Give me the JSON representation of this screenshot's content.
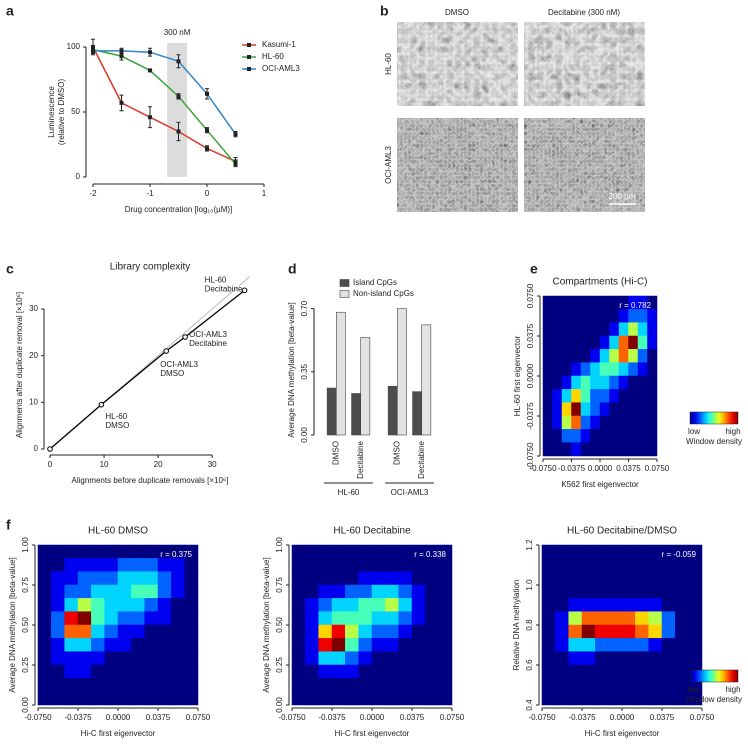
{
  "panel_labels": [
    "a",
    "b",
    "c",
    "d",
    "e",
    "f"
  ],
  "micrographs": {
    "columns": [
      "DMSO",
      "Decitabine (300 nM)"
    ],
    "rows": [
      "HL-60",
      "OCI-AML3"
    ],
    "scale_bar": "200 µm"
  },
  "chart_data": [
    {
      "type": "line",
      "xlabel": "Drug concentration [log₁₀(µM)]",
      "ylabel": [
        "Luminescence",
        "(relative to DMSO)"
      ],
      "x": [
        -2,
        -1.5,
        -1,
        -0.5,
        0,
        0.5
      ],
      "xlim": [
        -2,
        1
      ],
      "xticks": [
        -2,
        -1,
        0,
        1
      ],
      "ylim": [
        0,
        100
      ],
      "yticks": [
        0,
        50,
        100
      ],
      "highlight": {
        "label": "300 nM",
        "xlim": [
          -0.7,
          -0.35
        ]
      },
      "legend": "upper right",
      "series": [
        {
          "name": "Kasumi-1",
          "color": "#d93a2b",
          "values": [
            100,
            57,
            46,
            35,
            22,
            12
          ],
          "errors": [
            6,
            6,
            8,
            7,
            2,
            3
          ]
        },
        {
          "name": "HL-60",
          "color": "#3aa63a",
          "values": [
            98,
            93,
            82,
            62,
            36,
            10
          ],
          "errors": [
            3,
            3,
            1,
            2,
            2,
            2
          ]
        },
        {
          "name": "OCI-AML3",
          "color": "#2f86c8",
          "values": [
            97,
            97,
            96,
            89,
            64,
            33
          ],
          "errors": [
            2,
            2,
            3,
            5,
            4,
            2
          ]
        }
      ]
    },
    {
      "type": "scatter",
      "title": "Library complexity",
      "xlabel": "Alignments before duplicate removals [×10⁶]",
      "ylabel": [
        "Alignments after duplicate removal [×10⁶]"
      ],
      "x": [
        0,
        9.5,
        21.5,
        25,
        36
      ],
      "y": [
        0,
        9.5,
        21,
        24,
        34
      ],
      "color": "#000000",
      "point_labels": [
        null,
        [
          "HL-60",
          "DMSO"
        ],
        [
          "OCI-AML3",
          "DMSO"
        ],
        [
          "OCI-AML3",
          "Decitabine"
        ],
        [
          "HL-60",
          "Decitabine"
        ]
      ],
      "xlim": [
        0,
        37
      ],
      "xticks": [
        0,
        10,
        20,
        30
      ],
      "ylim": [
        0,
        36
      ],
      "yticks": [
        0,
        10,
        20,
        30
      ]
    },
    {
      "type": "grouped_bar",
      "ylabel": [
        "Average DNA methylation [beta-value]"
      ],
      "categories": [
        "DMSO",
        "Decitabine",
        "DMSO",
        "Decitabine"
      ],
      "groups": [
        "HL-60",
        "OCI-AML3"
      ],
      "series": [
        {
          "name": "Island CpGs",
          "color": "#4d4d4d",
          "values": [
            0.26,
            0.23,
            0.27,
            0.24
          ]
        },
        {
          "name": "Non-island CpGs",
          "color": "#e2e2e2",
          "values": [
            0.68,
            0.54,
            0.7,
            0.61
          ]
        }
      ],
      "ylim": [
        0,
        0.72
      ],
      "yticks": [
        {
          "value": 0,
          "label": "0.00"
        },
        0.35,
        {
          "value": 0.7,
          "label": "0.70"
        }
      ],
      "legend": "upper center"
    },
    {
      "type": "heatmap",
      "title": "Compartments (Hi-C)",
      "annotation": "r = 0.782",
      "xlabel": "K562 first eigenvector",
      "ylabel": [
        "HL-60 first eigenvector"
      ],
      "xlim": [
        -0.075,
        0.075
      ],
      "ylim": [
        -0.075,
        0.075
      ],
      "xticks": [
        {
          "value": -0.075,
          "label": "-0.0750"
        },
        {
          "value": -0.0375,
          "label": "-0.0375"
        },
        {
          "value": 0,
          "label": "0.0000"
        },
        {
          "value": 0.0375,
          "label": "0.0375"
        },
        {
          "value": 0.075,
          "label": "0.0750"
        }
      ],
      "yticks": [
        {
          "value": -0.075,
          "label": "-0.0750"
        },
        {
          "value": -0.0375,
          "label": "-0.0375"
        },
        {
          "value": 0,
          "label": "0.0000"
        },
        {
          "value": 0.0375,
          "label": "0.0375"
        },
        {
          "value": 0.075,
          "label": "0.0750"
        }
      ],
      "zlim": [
        0,
        9
      ],
      "colorbar": {
        "low": "low",
        "high": "high",
        "label": "Window density"
      },
      "z": [
        [
          0,
          0,
          0,
          0,
          0,
          0,
          0,
          0,
          0,
          1,
          1,
          0
        ],
        [
          0,
          0,
          0,
          0,
          0,
          0,
          0,
          0,
          1,
          2,
          2,
          1
        ],
        [
          0,
          0,
          0,
          0,
          0,
          0,
          0,
          1,
          3,
          5,
          3,
          1
        ],
        [
          0,
          0,
          0,
          0,
          0,
          0,
          1,
          3,
          7,
          9,
          4,
          1
        ],
        [
          0,
          0,
          0,
          0,
          0,
          1,
          3,
          5,
          7,
          5,
          2,
          0
        ],
        [
          0,
          0,
          0,
          1,
          2,
          3,
          4,
          4,
          3,
          2,
          1,
          0
        ],
        [
          0,
          0,
          1,
          3,
          4,
          3,
          3,
          2,
          1,
          0,
          0,
          0
        ],
        [
          0,
          1,
          3,
          6,
          4,
          2,
          2,
          1,
          0,
          0,
          0,
          0
        ],
        [
          0,
          1,
          6,
          9,
          3,
          2,
          1,
          0,
          0,
          0,
          0,
          0
        ],
        [
          0,
          1,
          5,
          7,
          2,
          1,
          0,
          0,
          0,
          0,
          0,
          0
        ],
        [
          0,
          0,
          2,
          2,
          1,
          0,
          0,
          0,
          0,
          0,
          0,
          0
        ],
        [
          0,
          0,
          0,
          1,
          0,
          0,
          0,
          0,
          0,
          0,
          0,
          0
        ]
      ]
    },
    {
      "type": "heatmap",
      "title": "HL-60 DMSO",
      "annotation": "r = 0.375",
      "xlabel": "Hi-C first eigenvector",
      "ylabel": [
        "Average DNA methylation [beta-value]"
      ],
      "xlim": [
        -0.075,
        0.075
      ],
      "ylim": [
        0,
        1
      ],
      "xticks": [
        {
          "value": -0.075,
          "label": "-0.0750"
        },
        {
          "value": -0.0375,
          "label": "-0.0375"
        },
        {
          "value": 0,
          "label": "0.0000"
        },
        {
          "value": 0.0375,
          "label": "0.0375"
        },
        {
          "value": 0.075,
          "label": "0.0750"
        }
      ],
      "yticks": [
        {
          "value": 0,
          "label": "0.00"
        },
        0.25,
        {
          "value": 0.5,
          "label": "0.50"
        },
        0.75,
        {
          "value": 1,
          "label": "1.00"
        }
      ],
      "zlim": [
        0,
        9
      ],
      "z": [
        [
          0,
          0,
          0,
          0,
          0,
          0,
          0,
          0,
          0,
          0,
          0,
          0
        ],
        [
          0,
          0,
          1,
          1,
          1,
          1,
          2,
          2,
          2,
          1,
          1,
          0
        ],
        [
          0,
          1,
          1,
          2,
          2,
          2,
          3,
          3,
          3,
          2,
          1,
          0
        ],
        [
          0,
          1,
          2,
          2,
          3,
          3,
          3,
          4,
          4,
          2,
          1,
          0
        ],
        [
          0,
          1,
          3,
          5,
          4,
          3,
          3,
          3,
          2,
          1,
          0,
          0
        ],
        [
          0,
          2,
          8,
          9,
          4,
          3,
          2,
          2,
          1,
          1,
          0,
          0
        ],
        [
          0,
          2,
          7,
          7,
          3,
          2,
          1,
          1,
          0,
          0,
          0,
          0
        ],
        [
          0,
          1,
          3,
          3,
          2,
          1,
          1,
          0,
          0,
          0,
          0,
          0
        ],
        [
          0,
          1,
          1,
          1,
          1,
          0,
          0,
          0,
          0,
          0,
          0,
          0
        ],
        [
          0,
          0,
          1,
          1,
          0,
          0,
          0,
          0,
          0,
          0,
          0,
          0
        ],
        [
          0,
          0,
          0,
          0,
          0,
          0,
          0,
          0,
          0,
          0,
          0,
          0
        ],
        [
          0,
          0,
          0,
          0,
          0,
          0,
          0,
          0,
          0,
          0,
          0,
          0
        ]
      ]
    },
    {
      "type": "heatmap",
      "title": "HL-60 Decitabine",
      "annotation": "r = 0.338",
      "xlabel": "Hi-C first eigenvector",
      "ylabel": [
        "Average DNA methylation [beta-value]"
      ],
      "xlim": [
        -0.075,
        0.075
      ],
      "ylim": [
        0,
        1
      ],
      "xticks": [
        {
          "value": -0.075,
          "label": "-0.0750"
        },
        {
          "value": -0.0375,
          "label": "-0.0375"
        },
        {
          "value": 0,
          "label": "0.0000"
        },
        {
          "value": 0.0375,
          "label": "0.0375"
        },
        {
          "value": 0.075,
          "label": "0.0750"
        }
      ],
      "yticks": [
        {
          "value": 0,
          "label": "0.00"
        },
        0.25,
        {
          "value": 0.5,
          "label": "0.50"
        },
        0.75,
        {
          "value": 1,
          "label": "1.00"
        }
      ],
      "zlim": [
        0,
        9
      ],
      "z": [
        [
          0,
          0,
          0,
          0,
          0,
          0,
          0,
          0,
          0,
          0,
          0,
          0
        ],
        [
          0,
          0,
          0,
          0,
          0,
          0,
          0,
          0,
          0,
          0,
          0,
          0
        ],
        [
          0,
          0,
          0,
          0,
          0,
          1,
          1,
          1,
          1,
          0,
          0,
          0
        ],
        [
          0,
          0,
          1,
          1,
          2,
          2,
          3,
          3,
          2,
          1,
          0,
          0
        ],
        [
          0,
          1,
          2,
          3,
          3,
          4,
          4,
          5,
          3,
          1,
          0,
          0
        ],
        [
          0,
          1,
          3,
          4,
          4,
          4,
          3,
          3,
          2,
          1,
          0,
          0
        ],
        [
          0,
          1,
          6,
          8,
          5,
          3,
          2,
          2,
          1,
          0,
          0,
          0
        ],
        [
          0,
          1,
          8,
          9,
          4,
          2,
          1,
          1,
          0,
          0,
          0,
          0
        ],
        [
          0,
          1,
          3,
          3,
          2,
          1,
          0,
          0,
          0,
          0,
          0,
          0
        ],
        [
          0,
          0,
          1,
          1,
          1,
          0,
          0,
          0,
          0,
          0,
          0,
          0
        ],
        [
          0,
          0,
          0,
          0,
          0,
          0,
          0,
          0,
          0,
          0,
          0,
          0
        ],
        [
          0,
          0,
          0,
          0,
          0,
          0,
          0,
          0,
          0,
          0,
          0,
          0
        ]
      ]
    },
    {
      "type": "heatmap",
      "title": "HL-60 Decitabine/DMSO",
      "annotation": "r = -0.059",
      "xlabel": "Hi-C first eigenvector",
      "ylabel": [
        "Relative DNA methylation"
      ],
      "xlim": [
        -0.075,
        0.075
      ],
      "ylim": [
        0.4,
        1.2
      ],
      "xticks": [
        {
          "value": -0.075,
          "label": "-0.0750"
        },
        {
          "value": -0.0375,
          "label": "-0.0375"
        },
        {
          "value": 0,
          "label": "0.0000"
        },
        {
          "value": 0.0375,
          "label": "0.0375"
        },
        {
          "value": 0.075,
          "label": "0.0750"
        }
      ],
      "yticks": [
        0.4,
        0.6,
        0.8,
        {
          "value": 1,
          "label": "1.0"
        },
        1.2
      ],
      "zlim": [
        0,
        9
      ],
      "colorbar": {
        "low": "low",
        "high": "high",
        "label": "Window density"
      },
      "z": [
        [
          0,
          0,
          0,
          0,
          0,
          0,
          0,
          0,
          0,
          0,
          0,
          0
        ],
        [
          0,
          0,
          0,
          0,
          0,
          0,
          0,
          0,
          0,
          0,
          0,
          0
        ],
        [
          0,
          0,
          0,
          0,
          0,
          0,
          0,
          0,
          0,
          0,
          0,
          0
        ],
        [
          0,
          0,
          0,
          0,
          0,
          0,
          0,
          0,
          0,
          0,
          0,
          0
        ],
        [
          0,
          0,
          1,
          1,
          1,
          1,
          1,
          1,
          1,
          0,
          0,
          0
        ],
        [
          0,
          1,
          5,
          7,
          7,
          7,
          7,
          6,
          5,
          2,
          0,
          0
        ],
        [
          0,
          1,
          7,
          9,
          8,
          8,
          8,
          7,
          6,
          2,
          0,
          0
        ],
        [
          0,
          1,
          3,
          3,
          2,
          2,
          2,
          2,
          1,
          0,
          0,
          0
        ],
        [
          0,
          0,
          1,
          1,
          0,
          0,
          0,
          0,
          0,
          0,
          0,
          0
        ],
        [
          0,
          0,
          0,
          0,
          0,
          0,
          0,
          0,
          0,
          0,
          0,
          0
        ],
        [
          0,
          0,
          0,
          0,
          0,
          0,
          0,
          0,
          0,
          0,
          0,
          0
        ],
        [
          0,
          0,
          0,
          0,
          0,
          0,
          0,
          0,
          0,
          0,
          0,
          0
        ]
      ]
    }
  ]
}
